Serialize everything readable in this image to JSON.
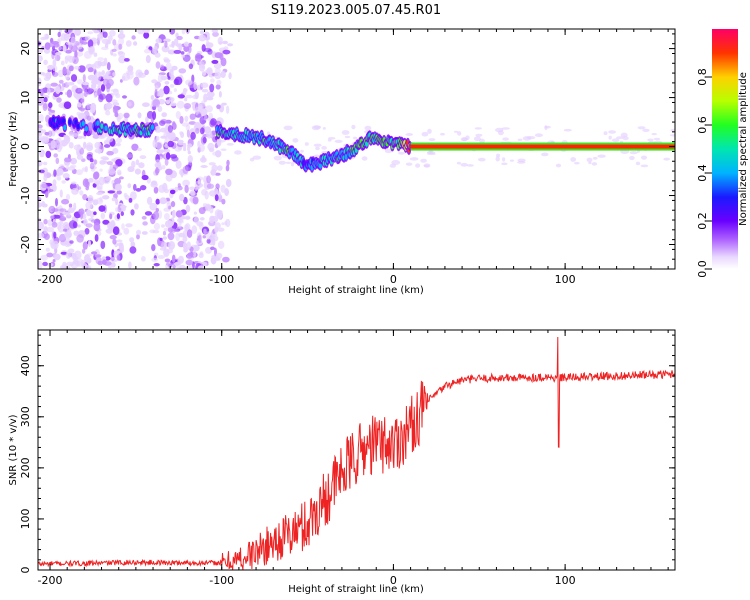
{
  "title": "S119.2023.005.07.45.R01",
  "chart_data": [
    {
      "type": "heatmap",
      "name": "spectrogram",
      "xlabel": "Height of straight line (km)",
      "ylabel": "Frequency (Hz)",
      "xlim": [
        -207,
        164
      ],
      "ylim": [
        -25,
        24
      ],
      "xticks": [
        -200,
        -100,
        0,
        100
      ],
      "yticks": [
        20,
        10,
        0,
        -10,
        -20
      ],
      "colorbar": {
        "label": "Normalized spectral amplitude",
        "range": [
          0,
          1
        ],
        "ticks": [
          0.0,
          0.2,
          0.4,
          0.6,
          0.8
        ],
        "colors": [
          "#f2e6ff",
          "#c58cff",
          "#7a00ff",
          "#1a1aff",
          "#00b3ff",
          "#00e6b0",
          "#33ff00",
          "#c8ff00",
          "#ffd000",
          "#ff3300",
          "#ff0066"
        ]
      },
      "signal_track": [
        {
          "x": -200,
          "freq": 5,
          "amp": 0.25
        },
        {
          "x": -157,
          "freq": 3.5,
          "amp": 0.5
        },
        {
          "x": -140,
          "freq": 3.5,
          "amp": 0.5
        },
        {
          "x": -100,
          "freq": 3,
          "amp": 0.5
        },
        {
          "x": -90,
          "freq": 2.5,
          "amp": 0.45
        },
        {
          "x": -75,
          "freq": 1.5,
          "amp": 0.5
        },
        {
          "x": -60,
          "freq": -1,
          "amp": 0.45
        },
        {
          "x": -50,
          "freq": -4,
          "amp": 0.35
        },
        {
          "x": -40,
          "freq": -3,
          "amp": 0.45
        },
        {
          "x": -25,
          "freq": -1,
          "amp": 0.5
        },
        {
          "x": -12,
          "freq": 2,
          "amp": 0.55
        },
        {
          "x": 0,
          "freq": 0.5,
          "amp": 0.55
        },
        {
          "x": 10,
          "freq": 0,
          "amp": 0.85
        },
        {
          "x": 164,
          "freq": 0,
          "amp": 0.85
        }
      ]
    },
    {
      "type": "line",
      "name": "snr",
      "xlabel": "Height of straight line (km)",
      "ylabel": "SNR (10 * v/v)",
      "xlim": [
        -207,
        164
      ],
      "ylim": [
        0,
        470
      ],
      "xticks": [
        -200,
        -100,
        0,
        100
      ],
      "yticks": [
        0,
        100,
        200,
        300,
        400
      ],
      "color": "#ee2222",
      "series": [
        {
          "name": "SNR",
          "x": [
            -207,
            -180,
            -150,
            -120,
            -100,
            -90,
            -80,
            -70,
            -60,
            -50,
            -40,
            -30,
            -20,
            -10,
            0,
            10,
            20,
            30,
            40,
            50,
            60,
            70,
            80,
            90,
            95,
            100,
            110,
            120,
            130,
            140,
            150,
            164
          ],
          "values": [
            12,
            13,
            15,
            14,
            14,
            20,
            35,
            55,
            70,
            90,
            140,
            190,
            230,
            250,
            245,
            280,
            330,
            360,
            372,
            375,
            376,
            376,
            377,
            378,
            375,
            377,
            378,
            379,
            380,
            381,
            382,
            384
          ]
        }
      ],
      "spike": {
        "x": 96,
        "max": 465,
        "min": 235
      }
    }
  ]
}
